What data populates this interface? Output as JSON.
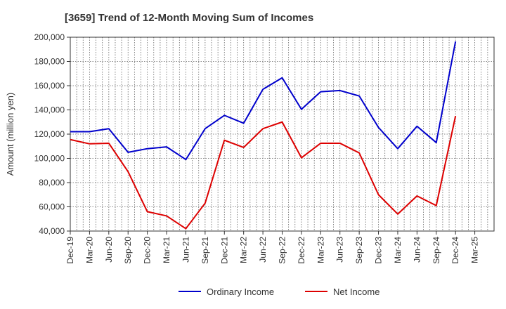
{
  "chart_data": {
    "type": "line",
    "title": "[3659]  Trend of 12-Month Moving Sum of Incomes",
    "xlabel": "",
    "ylabel": "Amount (million yen)",
    "ylim": [
      40000,
      200000
    ],
    "yticks": [
      40000,
      60000,
      80000,
      100000,
      120000,
      140000,
      160000,
      180000,
      200000
    ],
    "ytick_labels": [
      "40,000",
      "60,000",
      "80,000",
      "100,000",
      "120,000",
      "140,000",
      "160,000",
      "180,000",
      "200,000"
    ],
    "categories": [
      "Dec-19",
      "Mar-20",
      "Jun-20",
      "Sep-20",
      "Dec-20",
      "Mar-21",
      "Jun-21",
      "Sep-21",
      "Dec-21",
      "Mar-22",
      "Jun-22",
      "Sep-22",
      "Dec-22",
      "Mar-23",
      "Jun-23",
      "Sep-23",
      "Dec-23",
      "Mar-24",
      "Jun-24",
      "Sep-24",
      "Dec-24",
      "Mar-25"
    ],
    "grid": true,
    "legend_position": "bottom",
    "series": [
      {
        "name": "Ordinary Income",
        "color": "#0000cc",
        "values": [
          122000,
          122000,
          124500,
          105000,
          108000,
          109500,
          99000,
          124500,
          135500,
          129000,
          157000,
          166500,
          140500,
          155000,
          156000,
          151500,
          125500,
          108000,
          126500,
          113000,
          196500,
          null
        ]
      },
      {
        "name": "Net Income",
        "color": "#dd0000",
        "values": [
          115500,
          112000,
          112500,
          89000,
          56000,
          52500,
          42000,
          63000,
          115000,
          109000,
          124500,
          130000,
          100500,
          112500,
          112500,
          104500,
          70000,
          54000,
          69000,
          61000,
          135000,
          null
        ]
      }
    ]
  }
}
